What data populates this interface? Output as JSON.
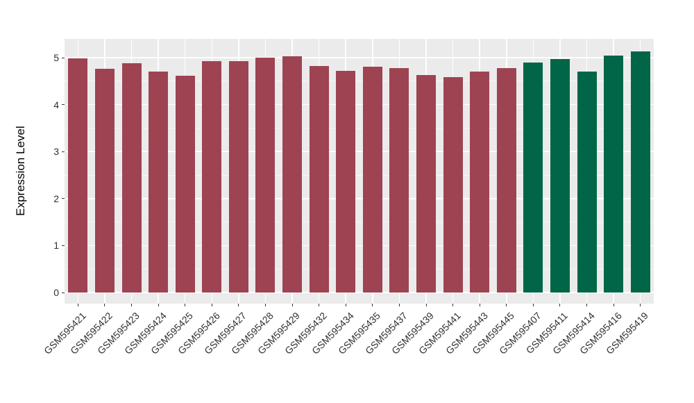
{
  "chart_data": {
    "type": "bar",
    "title": "",
    "xlabel": "",
    "ylabel": "Expression Level",
    "ylim": [
      0,
      5.4
    ],
    "yticks": [
      0,
      1,
      2,
      3,
      4,
      5
    ],
    "grid": "on",
    "legend": "none",
    "panel_background": "#EBEBEB",
    "gridline_color": "#FFFFFF",
    "tick_label_color": "#303030",
    "group_colors": {
      "red_group": "#9E4352",
      "green_group": "#006647"
    },
    "categories": [
      "GSM595421",
      "GSM595422",
      "GSM595423",
      "GSM595424",
      "GSM595425",
      "GSM595426",
      "GSM595427",
      "GSM595428",
      "GSM595429",
      "GSM595432",
      "GSM595434",
      "GSM595435",
      "GSM595437",
      "GSM595439",
      "GSM595441",
      "GSM595443",
      "GSM595445",
      "GSM595407",
      "GSM595411",
      "GSM595414",
      "GSM595416",
      "GSM595419"
    ],
    "values": [
      4.99,
      4.76,
      4.88,
      4.71,
      4.61,
      4.92,
      4.93,
      5.0,
      5.03,
      4.83,
      4.72,
      4.81,
      4.78,
      4.63,
      4.58,
      4.7,
      4.78,
      4.89,
      4.97,
      4.71,
      5.05,
      5.13
    ],
    "colors": [
      "#9E4352",
      "#9E4352",
      "#9E4352",
      "#9E4352",
      "#9E4352",
      "#9E4352",
      "#9E4352",
      "#9E4352",
      "#9E4352",
      "#9E4352",
      "#9E4352",
      "#9E4352",
      "#9E4352",
      "#9E4352",
      "#9E4352",
      "#9E4352",
      "#9E4352",
      "#006647",
      "#006647",
      "#006647",
      "#006647",
      "#006647"
    ]
  }
}
